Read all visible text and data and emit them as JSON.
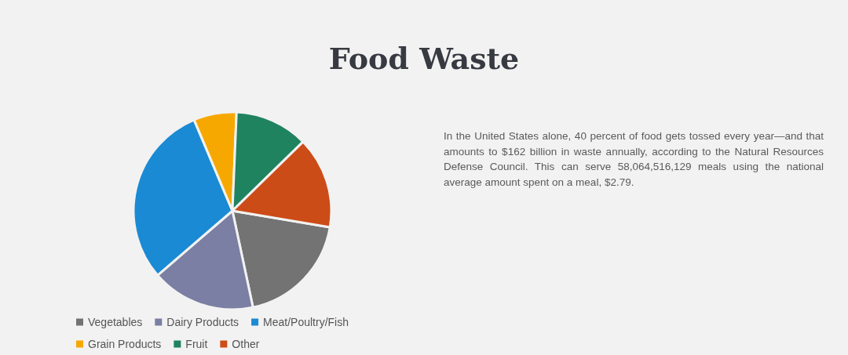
{
  "chart_data": {
    "type": "pie",
    "title": "Food Waste",
    "categories": [
      "Vegetables",
      "Dairy Products",
      "Meat/Poultry/Fish",
      "Grain Products",
      "Fruit",
      "Other"
    ],
    "values": [
      19,
      17,
      30,
      7,
      12,
      15
    ],
    "colors": [
      "#727372",
      "#7a7fa3",
      "#1a8ad4",
      "#f7a800",
      "#1f8360",
      "#cc4c17"
    ],
    "legend": "bottom",
    "annotations": [
      "In the United States alone, 40 percent of food gets tossed every year—and that amounts to $162 billion in waste annually, according to the Natural Resources Defense Council. This can serve 58,064,516,129 meals using the national average amount spent on a meal, $2.79."
    ]
  }
}
